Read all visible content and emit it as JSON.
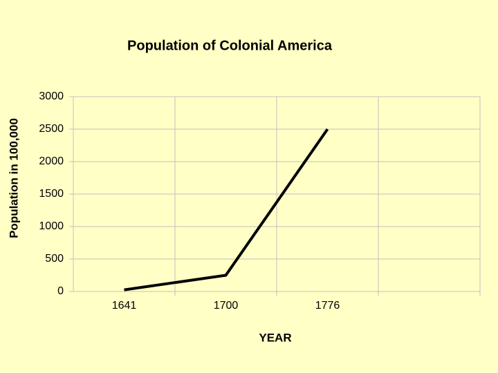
{
  "chart_data": {
    "type": "line",
    "title": "Population of Colonial America",
    "x_label": "YEAR",
    "y_label": "Population in 100,000",
    "categories": [
      "1641",
      "1700",
      "1776",
      null
    ],
    "series": [
      {
        "name": "Population",
        "color": "#000000",
        "values": [
          25,
          250,
          2500,
          null
        ]
      }
    ],
    "ylim": [
      0,
      3000
    ],
    "yticks": [
      0,
      500,
      1000,
      1500,
      2000,
      2500,
      3000
    ],
    "grid": true,
    "legend": false
  }
}
